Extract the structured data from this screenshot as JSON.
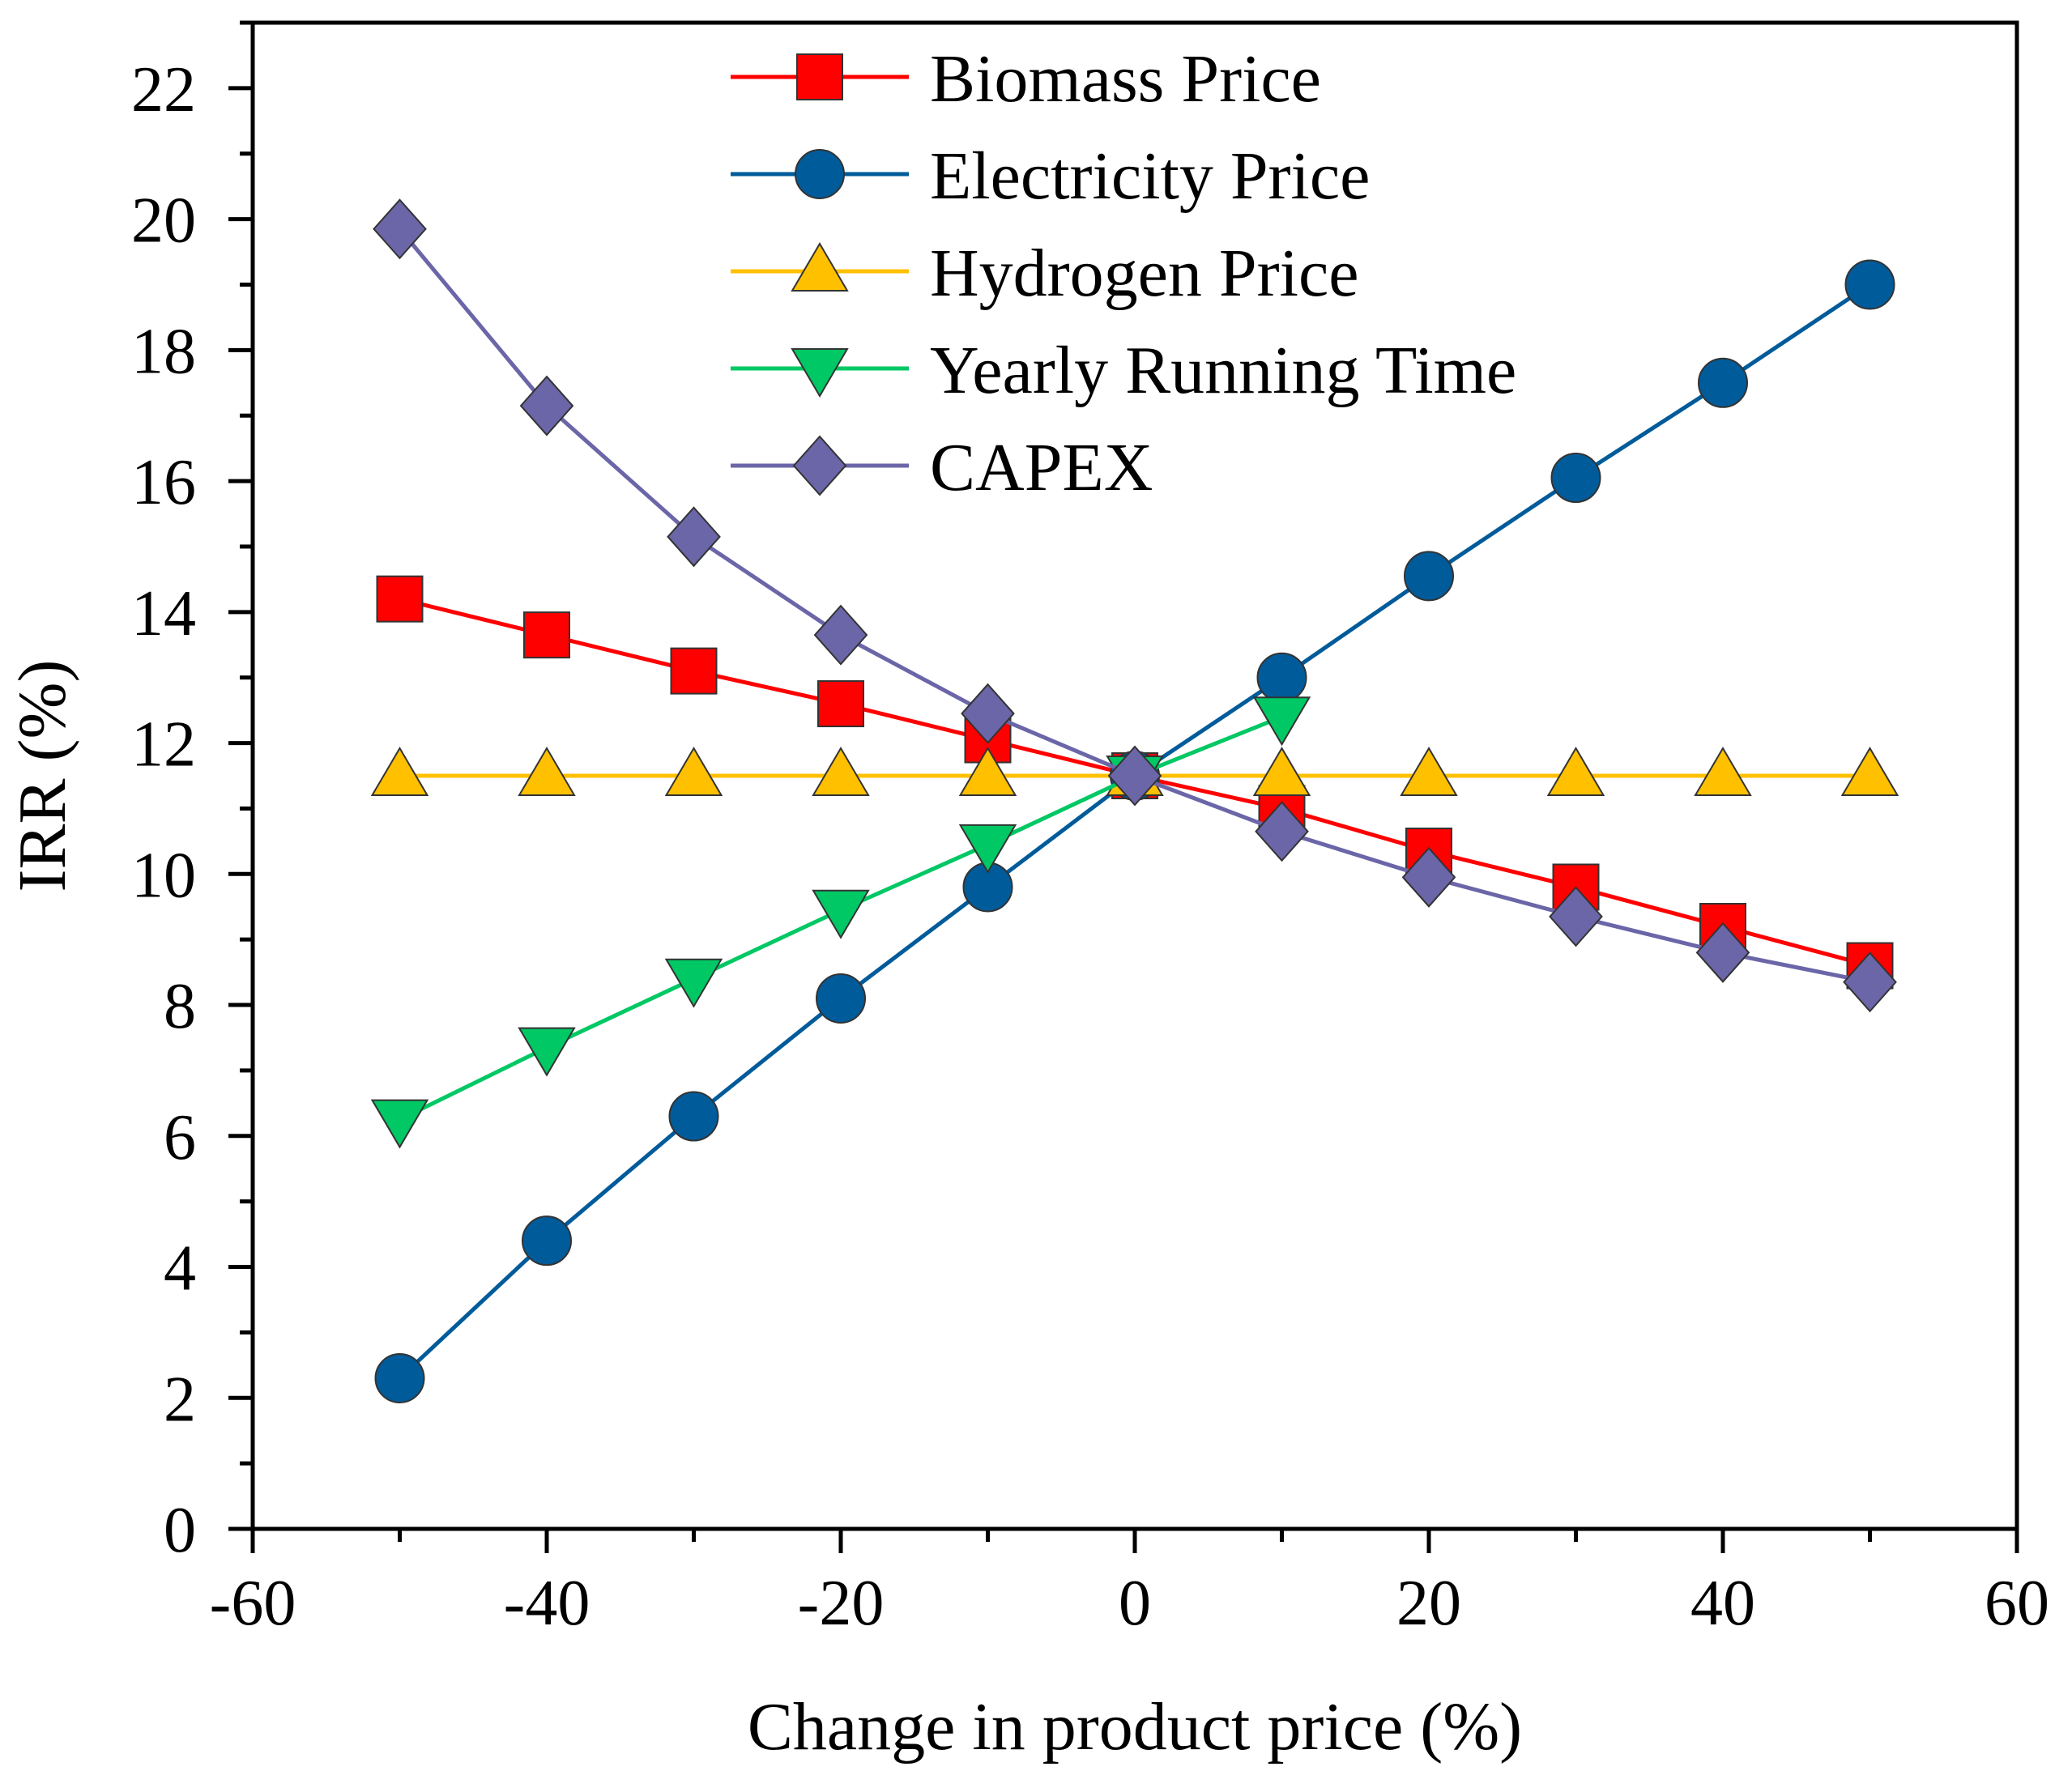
{
  "chart_data": {
    "type": "line",
    "xlabel": "Change in product price (%)",
    "ylabel": "IRR (%)",
    "xlim": [
      -60,
      60
    ],
    "ylim": [
      0,
      23
    ],
    "xticks": [
      -60,
      -40,
      -20,
      0,
      20,
      40,
      60
    ],
    "yticks": [
      0,
      2,
      4,
      6,
      8,
      10,
      12,
      14,
      16,
      18,
      20,
      22
    ],
    "legend_position": "top-center",
    "grid": false,
    "series": [
      {
        "name": "Biomass Price",
        "color": "#ff0000",
        "marker": "square",
        "x": [
          -50,
          -40,
          -30,
          -20,
          -10,
          0,
          10,
          20,
          30,
          40,
          50
        ],
        "y": [
          14.2,
          13.65,
          13.1,
          12.6,
          12.05,
          11.5,
          11.0,
          10.35,
          9.8,
          9.2,
          8.6
        ]
      },
      {
        "name": "Electricity Price",
        "color": "#005b9a",
        "marker": "circle",
        "x": [
          -50,
          -40,
          -30,
          -20,
          -10,
          0,
          10,
          20,
          30,
          40,
          50
        ],
        "y": [
          2.3,
          4.4,
          6.3,
          8.1,
          9.8,
          11.5,
          13.0,
          14.55,
          16.05,
          17.5,
          19.0
        ]
      },
      {
        "name": "Hydrogen Price",
        "color": "#ffc000",
        "marker": "triangle-up",
        "x": [
          -50,
          -40,
          -30,
          -20,
          -10,
          0,
          10,
          20,
          30,
          40,
          50
        ],
        "y": [
          11.5,
          11.5,
          11.5,
          11.5,
          11.5,
          11.5,
          11.5,
          11.5,
          11.5,
          11.5,
          11.5
        ]
      },
      {
        "name": "Yearly Running Time",
        "color": "#00c864",
        "marker": "triangle-down",
        "x": [
          -50,
          -40,
          -30,
          -20,
          -10,
          0,
          10
        ],
        "y": [
          6.25,
          7.35,
          8.4,
          9.45,
          10.45,
          11.5,
          12.4
        ]
      },
      {
        "name": "CAPEX",
        "color": "#6b66a8",
        "marker": "diamond",
        "x": [
          -50,
          -40,
          -30,
          -20,
          -10,
          0,
          10,
          20,
          30,
          40,
          50
        ],
        "y": [
          19.85,
          17.15,
          15.15,
          13.65,
          12.45,
          11.5,
          10.65,
          9.95,
          9.35,
          8.8,
          8.35
        ]
      }
    ]
  }
}
